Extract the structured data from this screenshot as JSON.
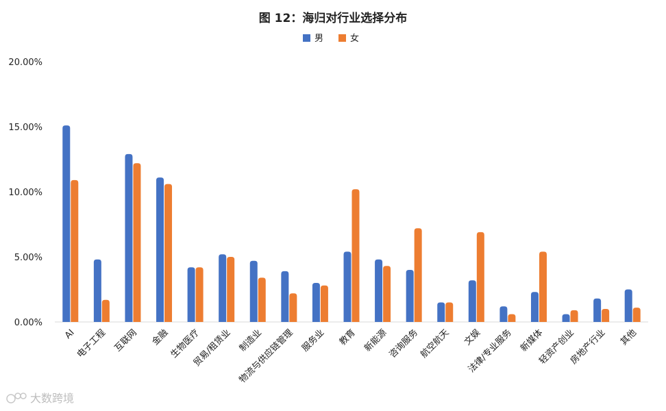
{
  "chart_data": {
    "type": "bar",
    "title": "图 12：海归对行业选择分布",
    "xlabel": "",
    "ylabel": "",
    "ylim": [
      0,
      20
    ],
    "yticks": [
      "0.00%",
      "5.00%",
      "10.00%",
      "15.00%",
      "20.00%"
    ],
    "grid": false,
    "legend_position": "top-center",
    "categories": [
      "AI",
      "电子工程",
      "互联网",
      "金融",
      "生物医疗",
      "贸易/租赁业",
      "制造业",
      "物流与供应链管理",
      "服务业",
      "教育",
      "新能源",
      "咨询服务",
      "航空航天",
      "文娱",
      "法律/专业服务",
      "新媒体",
      "轻资产创业",
      "房地产行业",
      "其他"
    ],
    "series": [
      {
        "name": "男",
        "color": "#4472c4",
        "values": [
          15.1,
          4.8,
          12.9,
          11.1,
          4.2,
          5.2,
          4.7,
          3.9,
          3.0,
          5.4,
          4.8,
          4.0,
          1.5,
          3.2,
          1.2,
          2.3,
          0.6,
          1.8,
          2.5
        ]
      },
      {
        "name": "女",
        "color": "#ed7d31",
        "values": [
          10.9,
          1.7,
          12.2,
          10.6,
          4.2,
          5.0,
          3.4,
          2.2,
          2.8,
          10.2,
          4.3,
          7.2,
          1.5,
          6.9,
          0.6,
          5.4,
          0.9,
          1.0,
          1.1
        ]
      }
    ]
  },
  "watermark": {
    "text": "大数跨境"
  }
}
